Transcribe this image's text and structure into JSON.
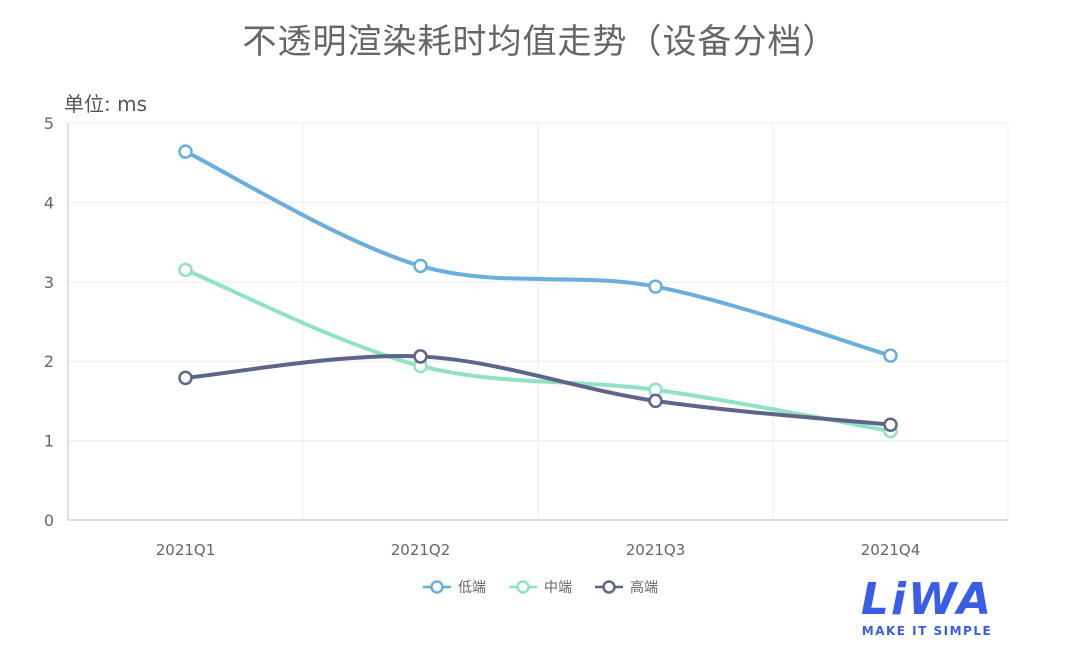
{
  "chart_data": {
    "type": "line",
    "title": "不透明渲染耗时均值走势（设备分档）",
    "ylabel": "单位: ms",
    "xlabel": "",
    "categories": [
      "2021Q1",
      "2021Q2",
      "2021Q3",
      "2021Q4"
    ],
    "ylim": [
      0,
      5
    ],
    "yticks": [
      0,
      1,
      2,
      3,
      4,
      5
    ],
    "grid": true,
    "smooth": true,
    "legend_position": "bottom",
    "series": [
      {
        "name": "低端",
        "values": [
          4.64,
          3.2,
          2.94,
          2.07
        ],
        "color": "#6aaede"
      },
      {
        "name": "中端",
        "values": [
          3.15,
          1.94,
          1.64,
          1.12
        ],
        "color": "#8fe3c3"
      },
      {
        "name": "高端",
        "values": [
          1.79,
          2.06,
          1.5,
          1.2
        ],
        "color": "#5f6589"
      }
    ]
  },
  "logo": {
    "mark": "LiWA",
    "tagline": "MAKE IT SIMPLE"
  }
}
